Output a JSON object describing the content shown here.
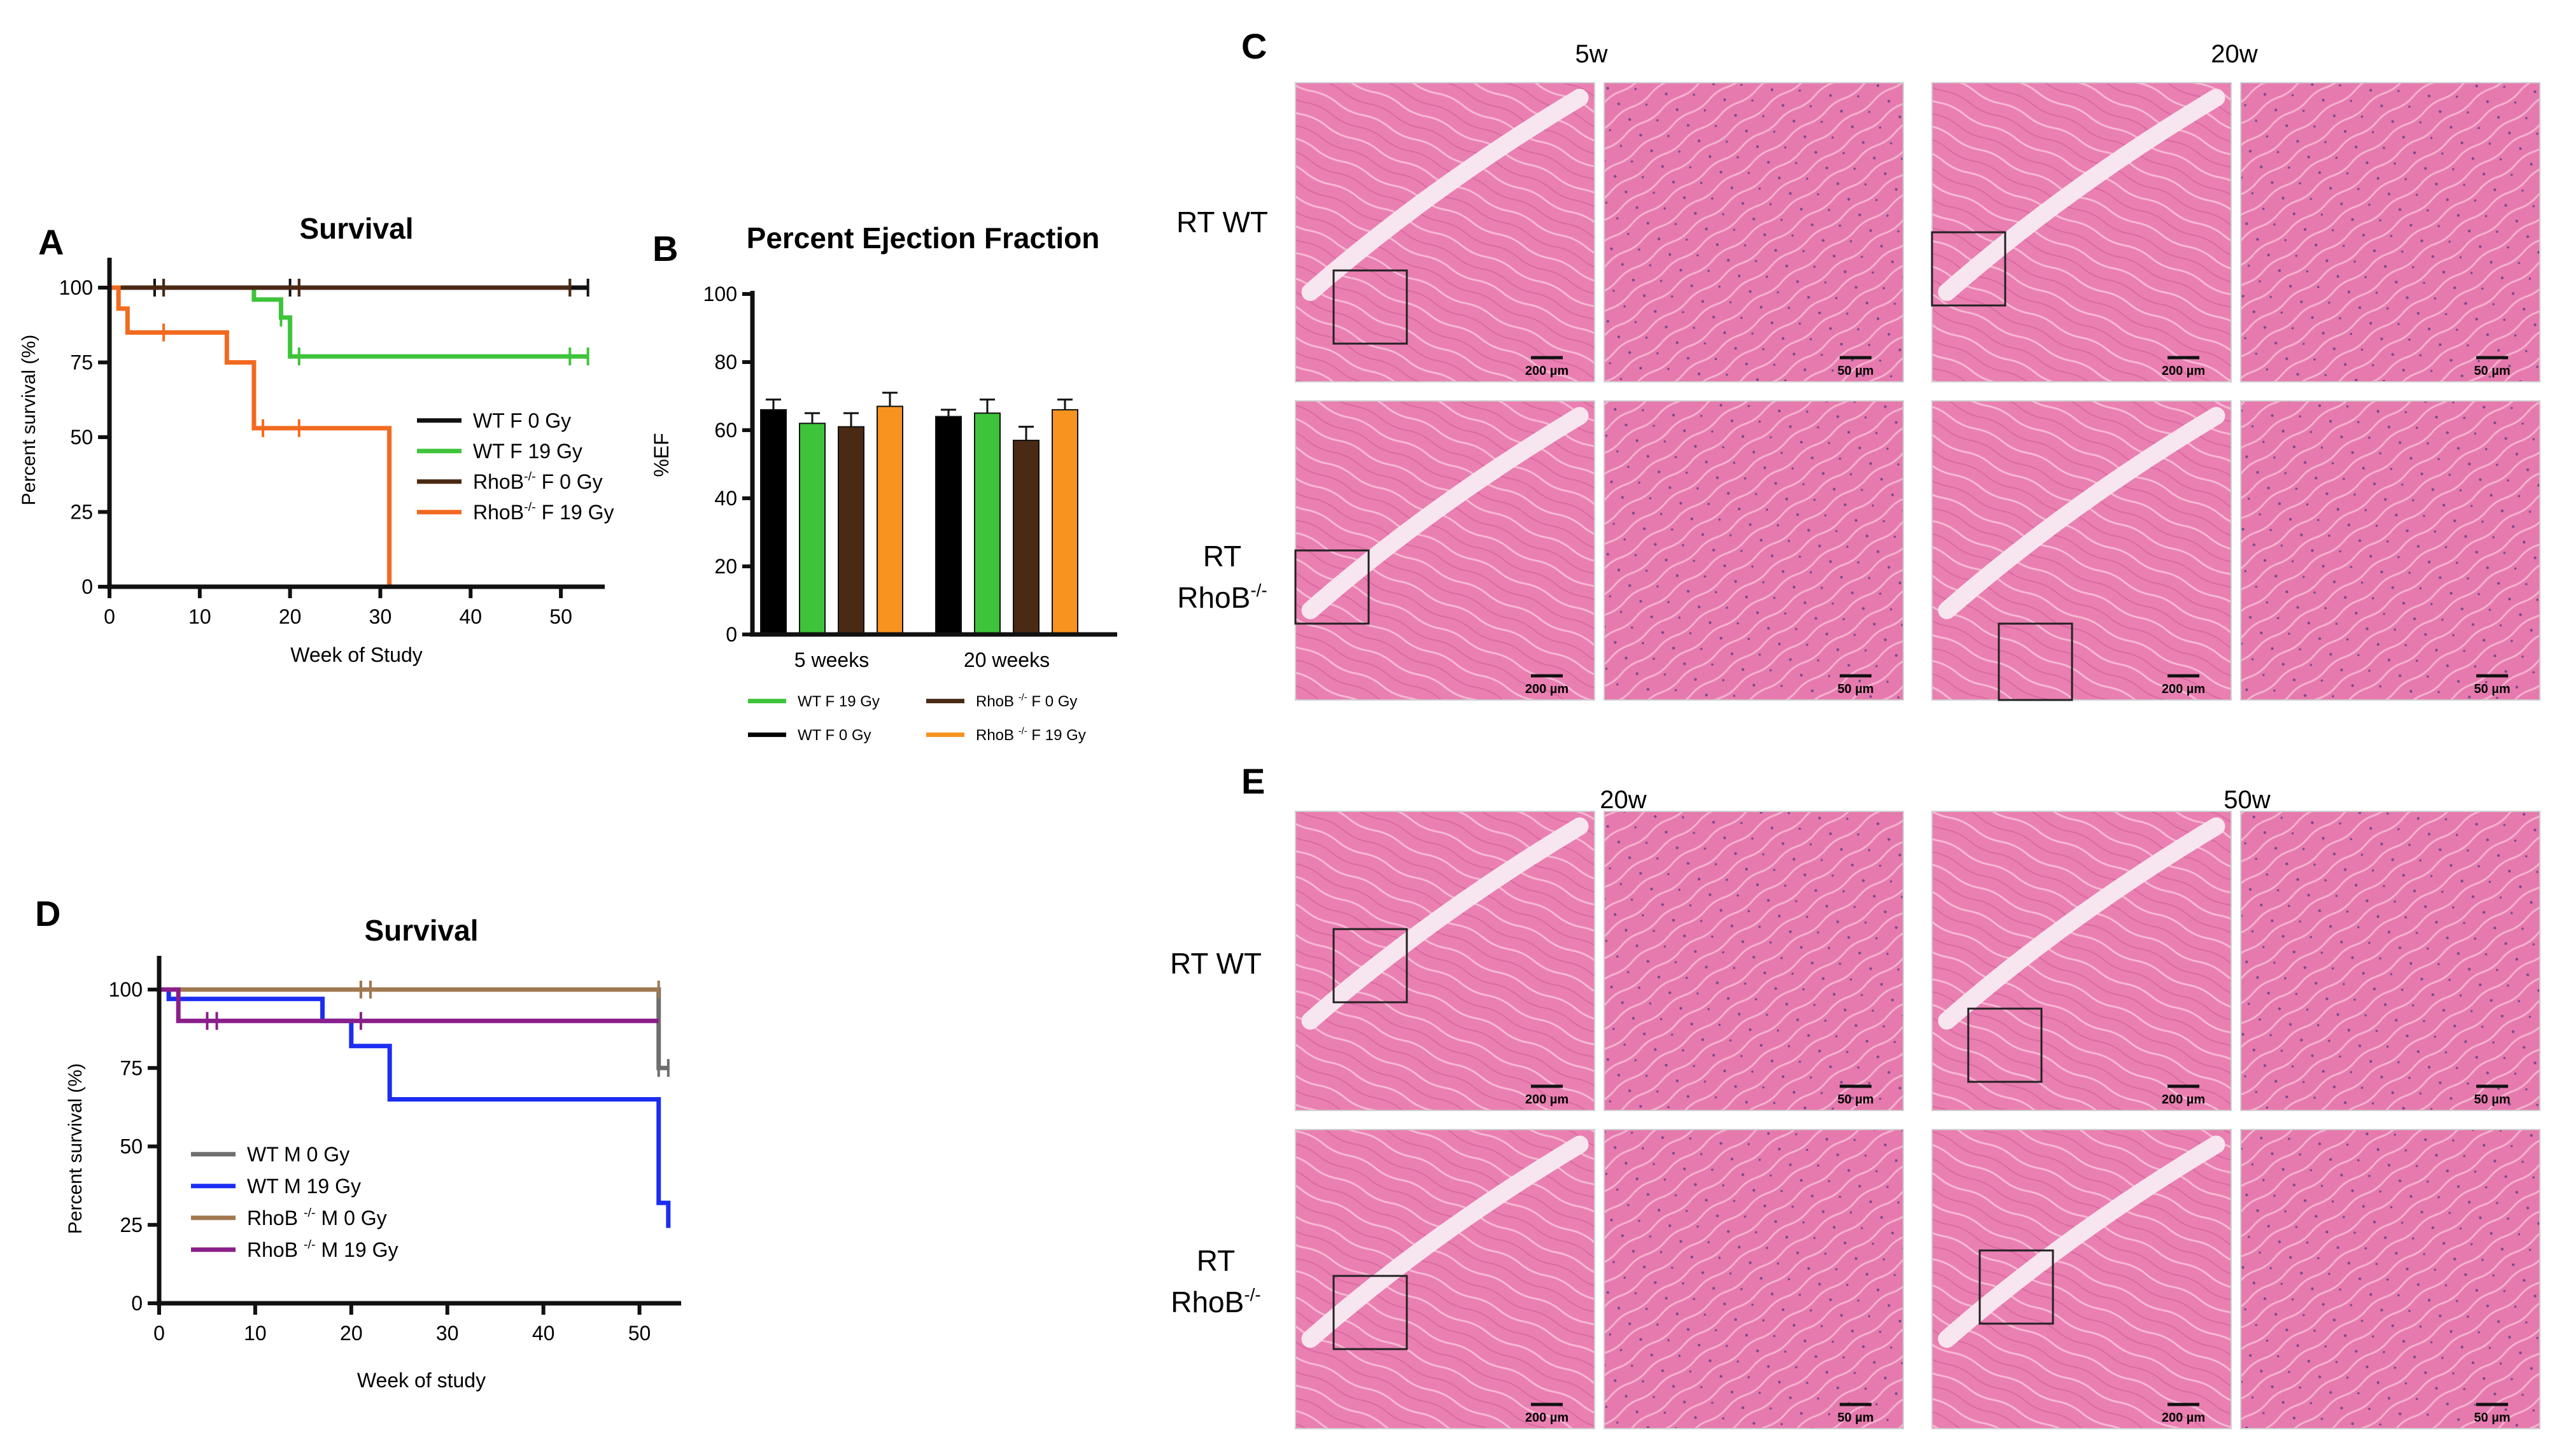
{
  "panels": {
    "A": {
      "letter": "A",
      "title": "Survival",
      "ylabel": "Percent survival (%)",
      "xlabel": "Week of Study",
      "yticks": [
        "100",
        "75",
        "50",
        "25",
        "0"
      ],
      "xticks": [
        "0",
        "10",
        "20",
        "30",
        "40",
        "50"
      ],
      "legend": [
        {
          "main": "WT F 0 Gy",
          "sup": "",
          "rest": "",
          "color": "#111111"
        },
        {
          "main": "WT F 19 Gy",
          "sup": "",
          "rest": "",
          "color": "#3ec43a"
        },
        {
          "main": "RhoB",
          "sup": "-/-",
          "rest": " F 0 Gy",
          "color": "#4a2a14"
        },
        {
          "main": "RhoB",
          "sup": "-/-",
          "rest": " F 19 Gy",
          "color": "#f26a1f"
        }
      ]
    },
    "B": {
      "letter": "B",
      "title": "Percent Ejection Fraction",
      "ylabel": "%EF",
      "yticks": [
        "100",
        "80",
        "60",
        "40",
        "20",
        "0"
      ],
      "groups": [
        "5 weeks",
        "20 weeks"
      ],
      "legend": [
        {
          "main": "WT F 19 Gy",
          "sup": "",
          "rest": "",
          "color": "#3ec43a"
        },
        {
          "main": "RhoB ",
          "sup": "-/-",
          "rest": " F 0 Gy",
          "color": "#4a2a14"
        },
        {
          "main": "WT F 0 Gy",
          "sup": "",
          "rest": "",
          "color": "#000000"
        },
        {
          "main": "RhoB ",
          "sup": "-/-",
          "rest": " F 19 Gy",
          "color": "#f7931e"
        }
      ]
    },
    "C": {
      "letter": "C",
      "col1": "5w",
      "col2": "20w",
      "row1": "RT WT",
      "row2a": "RT",
      "row2b": "RhoB",
      "row2sup": "-/-",
      "scale_large": "200 µm",
      "scale_small": "50 µm"
    },
    "D": {
      "letter": "D",
      "title": "Survival",
      "ylabel": "Percent survival (%)",
      "xlabel": "Week of study",
      "yticks": [
        "100",
        "75",
        "50",
        "25",
        "0"
      ],
      "xticks": [
        "0",
        "10",
        "20",
        "30",
        "40",
        "50"
      ],
      "legend": [
        {
          "main": "WT M 0 Gy",
          "sup": "",
          "rest": "",
          "color": "#6e6e6e"
        },
        {
          "main": "WT M 19 Gy",
          "sup": "",
          "rest": "",
          "color": "#1c2df2"
        },
        {
          "main": "RhoB ",
          "sup": "-/-",
          "rest": " M 0 Gy",
          "color": "#a07850"
        },
        {
          "main": "RhoB ",
          "sup": "-/-",
          "rest": " M 19 Gy",
          "color": "#8a1e8a"
        }
      ]
    },
    "E": {
      "letter": "E",
      "col1": "20w",
      "col2": "50w",
      "row1": "RT WT",
      "row2a": "RT",
      "row2b": "RhoB",
      "row2sup": "-/-",
      "scale_large": "200 µm",
      "scale_small": "50 µm"
    }
  },
  "chart_data": [
    {
      "type": "line",
      "title": "Survival",
      "xlabel": "Week of Study",
      "ylabel": "Percent survival (%)",
      "xlim": [
        0,
        55
      ],
      "ylim": [
        0,
        100
      ],
      "series": [
        {
          "name": "WT F 0 Gy",
          "color": "#111111",
          "steps": [
            [
              0,
              100
            ],
            [
              53,
              100
            ]
          ],
          "censor": [
            5,
            6,
            20,
            21,
            51,
            53
          ]
        },
        {
          "name": "WT F 19 Gy",
          "color": "#3ec43a",
          "steps": [
            [
              0,
              100
            ],
            [
              16,
              100
            ],
            [
              16,
              96
            ],
            [
              19,
              96
            ],
            [
              19,
              90
            ],
            [
              20,
              90
            ],
            [
              20,
              77
            ],
            [
              53,
              77
            ]
          ],
          "censor": [
            19,
            21,
            51,
            53
          ]
        },
        {
          "name": "RhoB-/- F 0 Gy",
          "color": "#4a2a14",
          "steps": [
            [
              0,
              100
            ],
            [
              51,
              100
            ]
          ],
          "censor": [
            6,
            21,
            51
          ]
        },
        {
          "name": "RhoB-/- F 19 Gy",
          "color": "#f26a1f",
          "steps": [
            [
              0,
              100
            ],
            [
              1,
              100
            ],
            [
              1,
              93
            ],
            [
              2,
              93
            ],
            [
              2,
              85
            ],
            [
              13,
              85
            ],
            [
              13,
              75
            ],
            [
              16,
              75
            ],
            [
              16,
              53
            ],
            [
              31,
              53
            ],
            [
              31,
              0
            ]
          ],
          "censor": [
            6,
            17,
            21
          ]
        }
      ]
    },
    {
      "type": "bar",
      "title": "Percent Ejection Fraction",
      "ylabel": "%EF",
      "ylim": [
        0,
        100
      ],
      "categories": [
        "5 weeks",
        "20 weeks"
      ],
      "series": [
        {
          "name": "WT F 0 Gy",
          "color": "#000000",
          "values": [
            66,
            64
          ],
          "errors": [
            3,
            2
          ]
        },
        {
          "name": "WT F 19 Gy",
          "color": "#3ec43a",
          "values": [
            62,
            65
          ],
          "errors": [
            3,
            4
          ]
        },
        {
          "name": "RhoB -/- F 0 Gy",
          "color": "#4a2a14",
          "values": [
            61,
            57
          ],
          "errors": [
            4,
            4
          ]
        },
        {
          "name": "RhoB -/- F 19 Gy",
          "color": "#f7931e",
          "values": [
            67,
            66
          ],
          "errors": [
            4,
            3
          ]
        }
      ]
    },
    {
      "type": "line",
      "title": "Survival",
      "xlabel": "Week of study",
      "ylabel": "Percent survival (%)",
      "xlim": [
        0,
        55
      ],
      "ylim": [
        0,
        100
      ],
      "series": [
        {
          "name": "WT M 0 Gy",
          "color": "#6e6e6e",
          "steps": [
            [
              0,
              100
            ],
            [
              52,
              100
            ],
            [
              52,
              75
            ],
            [
              53,
              75
            ]
          ],
          "censor": [
            21,
            22,
            52,
            53
          ]
        },
        {
          "name": "WT M 19 Gy",
          "color": "#1c2df2",
          "steps": [
            [
              0,
              100
            ],
            [
              1,
              100
            ],
            [
              1,
              97
            ],
            [
              17,
              97
            ],
            [
              17,
              90
            ],
            [
              20,
              90
            ],
            [
              20,
              82
            ],
            [
              24,
              82
            ],
            [
              24,
              65
            ],
            [
              52,
              65
            ],
            [
              52,
              32
            ],
            [
              53,
              32
            ],
            [
              53,
              24
            ]
          ],
          "censor": []
        },
        {
          "name": "RhoB -/- M 0 Gy",
          "color": "#a07850",
          "steps": [
            [
              0,
              100
            ],
            [
              52,
              100
            ]
          ],
          "censor": [
            21,
            22,
            52
          ]
        },
        {
          "name": "RhoB -/- M 19 Gy",
          "color": "#8a1e8a",
          "steps": [
            [
              0,
              100
            ],
            [
              2,
              100
            ],
            [
              2,
              90
            ],
            [
              52,
              90
            ]
          ],
          "censor": [
            5,
            6,
            21
          ]
        }
      ]
    }
  ]
}
